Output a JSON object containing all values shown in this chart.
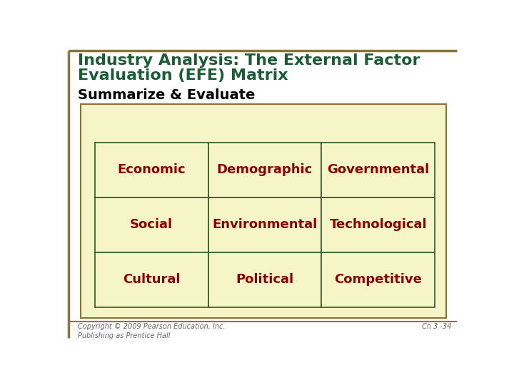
{
  "title_line1": "Industry Analysis: The External Factor",
  "title_line2": "Evaluation (EFE) Matrix",
  "subtitle": "Summarize & Evaluate",
  "title_color": "#1a5c38",
  "subtitle_color": "#000000",
  "cell_text_color": "#8B0000",
  "border_color_outer": "#8B7536",
  "border_color_inner": "#2d5a27",
  "table_bg": "#f5f5c8",
  "cells": [
    [
      "Economic",
      "Demographic",
      "Governmental"
    ],
    [
      "Social",
      "Environmental",
      "Technological"
    ],
    [
      "Cultural",
      "Political",
      "Competitive"
    ]
  ],
  "footer_left": "Copyright © 2009 Pearson Education, Inc.\nPublishing as Prentice Hall",
  "footer_right": "Ch 3 -34",
  "footer_color": "#666666",
  "white_bg": "#ffffff"
}
